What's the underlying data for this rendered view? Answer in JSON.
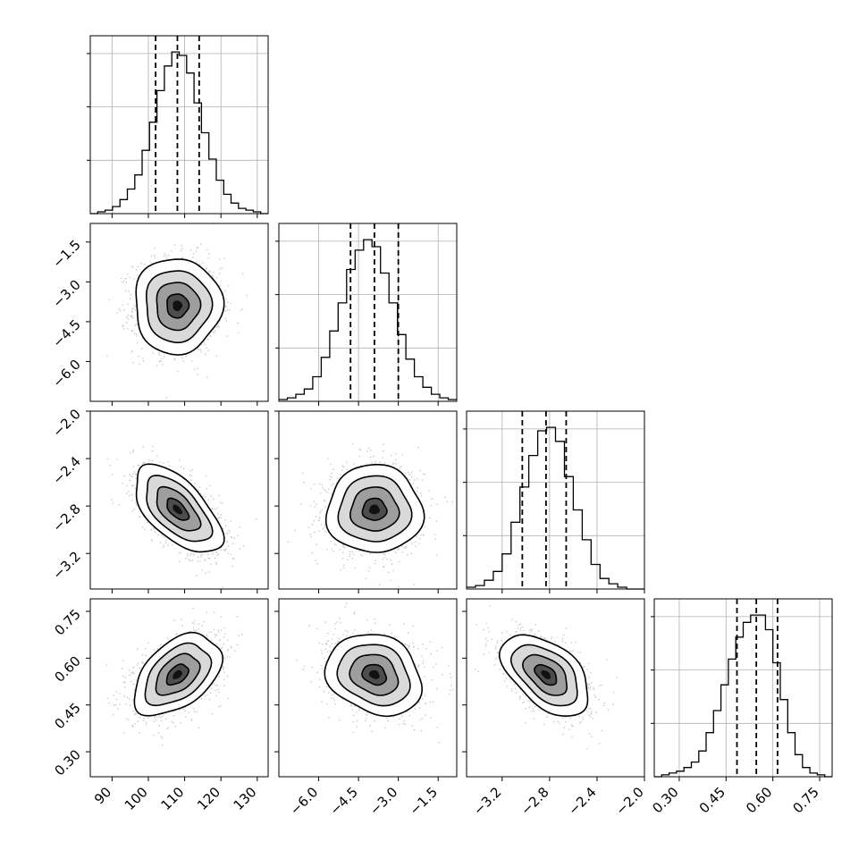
{
  "chart_data": {
    "type": "corner",
    "grid": true,
    "parameters": [
      {
        "range": [
          84,
          133
        ],
        "ticks": [
          "90",
          "100",
          "110",
          "120",
          "130"
        ],
        "tick_values": [
          90,
          100,
          110,
          120,
          130
        ],
        "quantiles": [
          102,
          108,
          114
        ],
        "hist_edges": [
          84,
          133
        ],
        "hist_counts": [
          0,
          1,
          2,
          4,
          8,
          14,
          22,
          36,
          52,
          70,
          84,
          92,
          90,
          80,
          63,
          46,
          31,
          19,
          11,
          6,
          3,
          2,
          1,
          0
        ]
      },
      {
        "range": [
          -7.5,
          -0.8
        ],
        "ticks": [
          "-6.0",
          "-4.5",
          "-3.0",
          "-1.5"
        ],
        "tick_values": [
          -6.0,
          -4.5,
          -3.0,
          -1.5
        ],
        "quantiles": [
          -4.8,
          -3.9,
          -3.0
        ],
        "hist_edges": [
          -7.5,
          -0.8
        ],
        "hist_counts": [
          1,
          2,
          4,
          7,
          14,
          25,
          40,
          56,
          75,
          86,
          92,
          88,
          73,
          56,
          38,
          24,
          14,
          8,
          4,
          2,
          1
        ]
      },
      {
        "range": [
          -3.5,
          -2.0
        ],
        "ticks": [
          "-3.2",
          "-2.8",
          "-2.4",
          "-2.0"
        ],
        "tick_values": [
          -3.2,
          -2.8,
          -2.4,
          -2.0
        ],
        "quantiles": [
          -3.03,
          -2.83,
          -2.66
        ],
        "hist_edges": [
          -3.5,
          -2.0
        ],
        "hist_counts": [
          1,
          2,
          5,
          10,
          20,
          38,
          58,
          76,
          90,
          92,
          84,
          64,
          45,
          28,
          14,
          6,
          3,
          1,
          0,
          0
        ]
      },
      {
        "range": [
          0.22,
          0.79
        ],
        "ticks": [
          "0.30",
          "0.45",
          "0.60",
          "0.75"
        ],
        "tick_values": [
          0.3,
          0.45,
          0.6,
          0.75
        ],
        "quantiles": [
          0.485,
          0.547,
          0.615
        ],
        "hist_edges": [
          0.22,
          0.79
        ],
        "hist_counts": [
          0,
          1,
          2,
          3,
          5,
          8,
          14,
          24,
          36,
          50,
          64,
          76,
          84,
          88,
          88,
          80,
          62,
          42,
          24,
          12,
          5,
          2,
          1,
          0
        ]
      }
    ],
    "correlations": [
      [
        1,
        0.0,
        -0.6,
        0.45
      ],
      [
        0.0,
        1,
        0.0,
        -0.2
      ],
      [
        -0.6,
        0.0,
        1,
        -0.5
      ],
      [
        0.45,
        -0.2,
        -0.5,
        1
      ]
    ],
    "contour_levels_sigma": [
      0.5,
      1.0,
      1.5,
      2.0
    ]
  }
}
